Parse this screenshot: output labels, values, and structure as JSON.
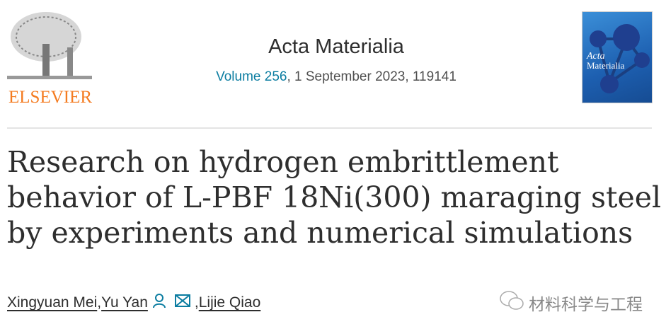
{
  "publisher": {
    "name": "ELSEVIER",
    "brand_color": "#f47b20"
  },
  "journal": {
    "name": "Acta Materialia",
    "volume_link": "Volume 256",
    "volume_rest": ", 1 September 2023, 119141",
    "link_color": "#0c7da1"
  },
  "cover": {
    "title": "Acta Materialia"
  },
  "article": {
    "title": "Research on hydrogen embrittlement behavior of L-PBF 18Ni(300) maraging steel by experiments and numerical simulations"
  },
  "authors": [
    {
      "name": "Xingyuan Mei"
    },
    {
      "name": "Yu Yan"
    },
    {
      "name": "Lijie Qiao"
    }
  ],
  "separators": {
    "comma": ", "
  },
  "watermark": {
    "text": "材料科学与工程"
  }
}
